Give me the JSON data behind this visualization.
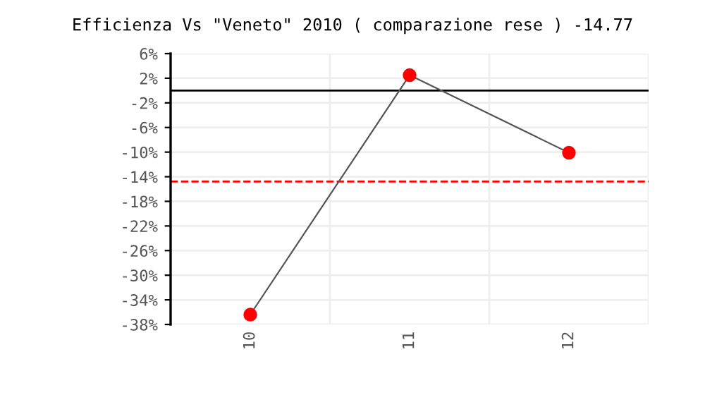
{
  "chart_data": {
    "type": "line",
    "title": "Efficienza Vs \"Veneto\" 2010 ( comparazione rese ) -14.77",
    "categories": [
      "10",
      "11",
      "12"
    ],
    "series": [
      {
        "color": "#555555",
        "colors": [
          "#ff0000",
          "#ff0000",
          "#ff0000"
        ],
        "values": [
          -36.4,
          2.5,
          -10.1
        ]
      }
    ],
    "marker": "circle",
    "line_style": "solid",
    "grid": true,
    "ylim": [
      -38,
      6
    ],
    "yticks": [
      {
        "value": 6,
        "label": "6%"
      },
      {
        "value": 2,
        "label": "2%"
      },
      {
        "value": -2,
        "label": "-2%"
      },
      {
        "value": -6,
        "label": "-6%"
      },
      {
        "value": -10,
        "label": "-10%"
      },
      {
        "value": -14,
        "label": "-14%"
      },
      {
        "value": -18,
        "label": "-18%"
      },
      {
        "value": -22,
        "label": "-22%"
      },
      {
        "value": -26,
        "label": "-26%"
      },
      {
        "value": -30,
        "label": "-30%"
      },
      {
        "value": -34,
        "label": "-34%"
      },
      {
        "value": -38,
        "label": "-38%"
      }
    ],
    "ref_lines": [
      {
        "axis": "y",
        "value": 0,
        "color": "#000000",
        "line_style": "solid"
      },
      {
        "axis": "y",
        "value": -14.77,
        "color": "#ff0000",
        "line_style": "dashed"
      }
    ]
  }
}
